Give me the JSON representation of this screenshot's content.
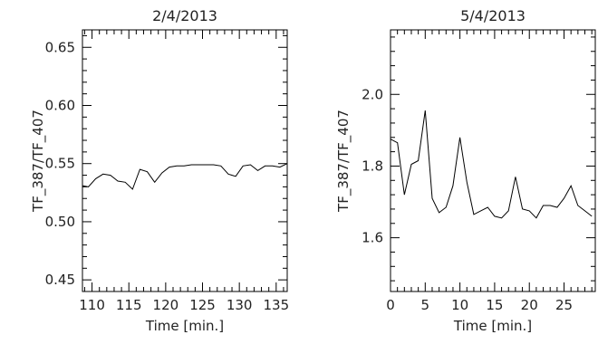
{
  "chart_data": [
    {
      "type": "line",
      "title": "2/4/2013",
      "xlabel": "Time [min.]",
      "ylabel": "TF_387/TF_407",
      "xlim": [
        108.7,
        136.5
      ],
      "ylim": [
        0.44,
        0.665
      ],
      "xticks": [
        110,
        115,
        120,
        125,
        130,
        135
      ],
      "xtick_labels": [
        "110",
        "115",
        "120",
        "125",
        "130",
        "135"
      ],
      "yticks": [
        0.45,
        0.5,
        0.55,
        0.6,
        0.65
      ],
      "ytick_labels": [
        "0.45",
        "0.50",
        "0.55",
        "0.60",
        "0.65"
      ],
      "grid": false,
      "series": [
        {
          "x": [
            108.7,
            109.5,
            110.5,
            111.5,
            112.5,
            113.5,
            114.5,
            115.5,
            116.5,
            117.5,
            118.5,
            119.5,
            120.5,
            121.5,
            122.5,
            123.5,
            124.5,
            125.5,
            126.5,
            127.5,
            128.5,
            129.5,
            130.5,
            131.5,
            132.5,
            133.5,
            134.5,
            135.5,
            136.5
          ],
          "y": [
            0.531,
            0.53,
            0.537,
            0.541,
            0.54,
            0.535,
            0.534,
            0.528,
            0.545,
            0.543,
            0.534,
            0.542,
            0.547,
            0.548,
            0.548,
            0.549,
            0.549,
            0.549,
            0.549,
            0.548,
            0.541,
            0.539,
            0.548,
            0.549,
            0.544,
            0.548,
            0.548,
            0.547,
            0.55
          ]
        }
      ]
    },
    {
      "type": "line",
      "title": "5/4/2013",
      "xlabel": "Time [min.]",
      "ylabel": "TF_387/TF_407",
      "xlim": [
        0,
        29.5
      ],
      "ylim": [
        1.45,
        2.18
      ],
      "xticks": [
        0,
        5,
        10,
        15,
        20,
        25
      ],
      "xtick_labels": [
        "0",
        "5",
        "10",
        "15",
        "20",
        "25"
      ],
      "yticks": [
        1.6,
        1.8,
        2.0
      ],
      "ytick_labels": [
        "1.6",
        "1.8",
        "2.0"
      ],
      "grid": false,
      "series": [
        {
          "x": [
            0,
            1,
            2,
            3,
            4,
            5,
            6,
            7,
            8,
            9,
            10,
            11,
            12,
            13,
            14,
            15,
            16,
            17,
            18,
            19,
            20,
            21,
            22,
            23,
            24,
            25,
            26,
            27,
            28,
            29
          ],
          "y": [
            1.875,
            1.865,
            1.72,
            1.805,
            1.815,
            1.955,
            1.71,
            1.67,
            1.685,
            1.745,
            1.88,
            1.755,
            1.665,
            1.675,
            1.685,
            1.66,
            1.655,
            1.675,
            1.77,
            1.68,
            1.675,
            1.655,
            1.69,
            1.69,
            1.685,
            1.71,
            1.745,
            1.69,
            1.675,
            1.66
          ]
        }
      ]
    }
  ]
}
